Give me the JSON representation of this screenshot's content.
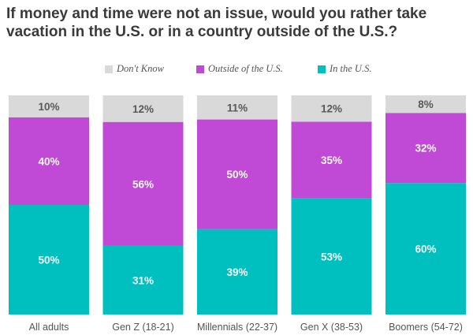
{
  "title": "If money and time were not an issue, would you rather take vacation in the U.S. or in a country outside of the U.S.?",
  "colors": {
    "dont_know": "#d9d9d9",
    "outside": "#c04ad6",
    "in_us": "#00bfbf",
    "label_dark": "#595959",
    "label_light": "#ffffff",
    "axis_text": "#555555"
  },
  "legend": [
    {
      "label": "Don't Know",
      "color": "#d9d9d9"
    },
    {
      "label": "Outside of the U.S.",
      "color": "#c04ad6"
    },
    {
      "label": "In the U.S.",
      "color": "#00bfbf"
    }
  ],
  "chart_data": {
    "type": "bar",
    "stacked": true,
    "percent": true,
    "categories": [
      "All adults",
      "Gen Z (18-21)",
      "Millennials (22-37)",
      "Gen X (38-53)",
      "Boomers (54-72)"
    ],
    "series": [
      {
        "name": "In the U.S.",
        "values": [
          50,
          31,
          39,
          53,
          60
        ]
      },
      {
        "name": "Outside of the U.S.",
        "values": [
          40,
          56,
          50,
          35,
          32
        ]
      },
      {
        "name": "Don't Know",
        "values": [
          10,
          12,
          11,
          12,
          8
        ]
      }
    ],
    "ylim": [
      0,
      100
    ],
    "legend_position": "top",
    "grid": false
  }
}
